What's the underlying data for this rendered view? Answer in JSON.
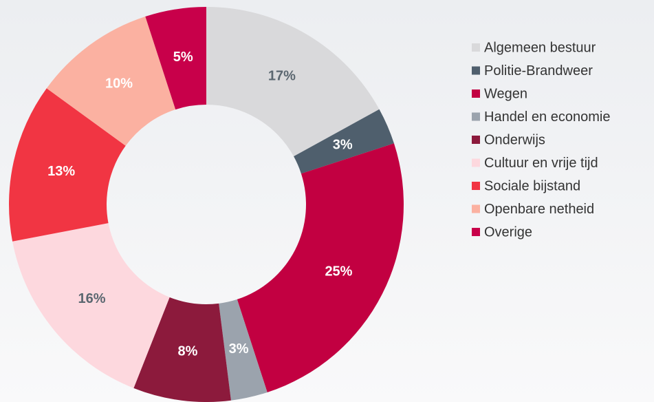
{
  "chart_data": {
    "type": "donut",
    "categories": [
      "Algemeen bestuur",
      "Politie-Brandweer",
      "Wegen",
      "Handel en economie",
      "Onderwijs",
      "Cultuur en vrije tijd",
      "Sociale bijstand",
      "Openbare netheid",
      "Overige"
    ],
    "values": [
      17,
      3,
      25,
      3,
      8,
      16,
      13,
      10,
      5
    ],
    "value_labels": [
      "17%",
      "3%",
      "25%",
      "3%",
      "8%",
      "16%",
      "13%",
      "10%",
      "5%"
    ],
    "colors": [
      "#d9d9db",
      "#4f5f6d",
      "#c20041",
      "#9ba3ad",
      "#8c1a3c",
      "#fdd8de",
      "#f13543",
      "#fbb1a1",
      "#c8004a"
    ],
    "legend": "right"
  }
}
